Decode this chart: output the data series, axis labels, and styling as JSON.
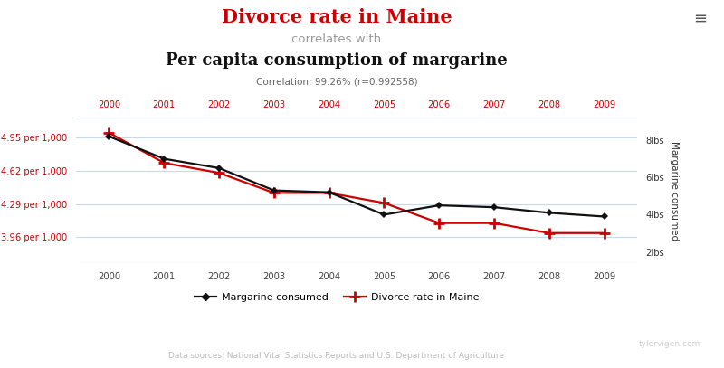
{
  "years": [
    2000,
    2001,
    2002,
    2003,
    2004,
    2005,
    2006,
    2007,
    2008,
    2009
  ],
  "margarine_lbs": [
    8.2,
    7.0,
    6.5,
    5.3,
    5.2,
    4.0,
    4.5,
    4.4,
    4.1,
    3.9
  ],
  "divorce_rate": [
    5.0,
    4.7,
    4.6,
    4.4,
    4.4,
    4.3,
    4.1,
    4.1,
    4.0,
    4.0
  ],
  "title_line1": "Divorce rate in Maine",
  "title_line2": "correlates with",
  "title_line3": "Per capita consumption of margarine",
  "correlation_text": "Correlation: 99.26% (r=0.992558)",
  "left_ylabel": "Divorce rate in Maine",
  "right_ylabel": "Margarine consumed",
  "left_yticks": [
    3.96,
    4.29,
    4.62,
    4.95
  ],
  "left_yticklabels": [
    "3.96 per 1,000",
    "4.29 per 1,000",
    "4.62 per 1,000",
    "4.95 per 1,000"
  ],
  "right_yticks": [
    2,
    4,
    6,
    8
  ],
  "right_yticklabels": [
    "2lbs",
    "4lbs",
    "6lbs",
    "8lbs"
  ],
  "ylim_left": [
    3.7,
    5.15
  ],
  "ylim_right": [
    1.4,
    9.2
  ],
  "xlim": [
    1999.4,
    2009.6
  ],
  "datasource": "Data sources: National Vital Statistics Reports and U.S. Department of Agriculture",
  "watermark": "tylervigen.com",
  "title1_color": "#cc0000",
  "title2_color": "#999999",
  "title3_color": "#111111",
  "line_margarine_color": "#111111",
  "line_divorce_color": "#cc0000",
  "background_color": "#ffffff",
  "grid_color": "#c8daea",
  "year_label_color_top": "#cc0000",
  "year_label_color_bottom": "#444444",
  "left_label_color": "#cc0000",
  "right_label_color": "#333333"
}
